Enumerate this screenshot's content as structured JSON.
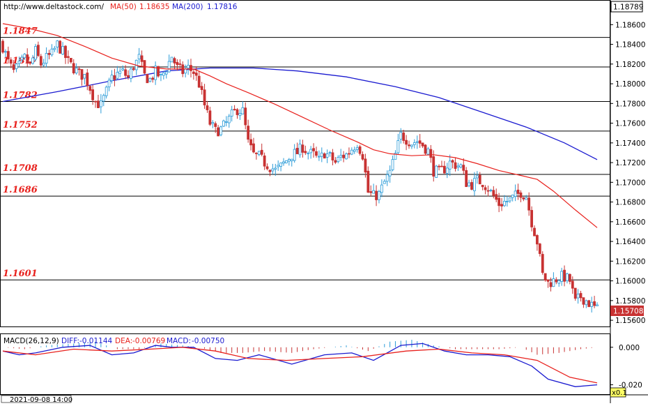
{
  "header": {
    "site": "http://www.deltastock.com/",
    "ma50_label": "MA(50)",
    "ma50_value": "1.18635",
    "ma200_label": "MA(200)",
    "ma200_value": "1.17816"
  },
  "macd_header": {
    "title": "MACD(26,12,9)",
    "diff_label": "DIFF:",
    "diff_value": "-0.01144",
    "dea_label": "DEA:",
    "dea_value": "-0.00769",
    "macd_label": "MACD:",
    "macd_value": "-0.00750"
  },
  "footer": {
    "timestamp": "2021-09-08 14:00",
    "zoom_badge": "x0.1"
  },
  "colors": {
    "ma50": "#e8201c",
    "ma200": "#1a1ad0",
    "bull": "#2a9bd8",
    "bear": "#c83232",
    "level_label": "#e8201c",
    "current_price_bg": "#c83232"
  },
  "chart_data": [
    {
      "type": "candlestick",
      "title": "",
      "ylim": [
        1.1553,
        1.1885
      ],
      "y_ticks": [
        "1.18600",
        "1.18400",
        "1.18200",
        "1.18000",
        "1.17800",
        "1.17600",
        "1.17400",
        "1.17200",
        "1.17000",
        "1.16800",
        "1.16600",
        "1.16400",
        "1.16200",
        "1.16000",
        "1.15800",
        "1.15600"
      ],
      "top_price_label": "1.18789",
      "current_price": 1.15708,
      "current_price_label": "1.15708",
      "levels": [
        {
          "value": 1.1847,
          "label": "1.1847"
        },
        {
          "value": 1.1817,
          "label": "1.1817"
        },
        {
          "value": 1.1782,
          "label": "1.1782"
        },
        {
          "value": 1.1752,
          "label": "1.1752"
        },
        {
          "value": 1.1708,
          "label": "1.1708"
        },
        {
          "value": 1.1686,
          "label": "1.1686"
        },
        {
          "value": 1.1601,
          "label": "1.1601"
        }
      ],
      "close_path": [
        [
          0,
          1.1838
        ],
        [
          2,
          1.1822
        ],
        [
          4,
          1.1812
        ],
        [
          6,
          1.1818
        ],
        [
          8,
          1.1826
        ],
        [
          10,
          1.1818
        ],
        [
          12,
          1.1833
        ],
        [
          14,
          1.182
        ],
        [
          16,
          1.1826
        ],
        [
          18,
          1.183
        ],
        [
          20,
          1.184
        ],
        [
          22,
          1.1832
        ],
        [
          24,
          1.1822
        ],
        [
          26,
          1.1816
        ],
        [
          28,
          1.181
        ],
        [
          30,
          1.1808
        ],
        [
          32,
          1.1796
        ],
        [
          34,
          1.1782
        ],
        [
          36,
          1.1778
        ],
        [
          38,
          1.1792
        ],
        [
          40,
          1.1806
        ],
        [
          42,
          1.181
        ],
        [
          44,
          1.1812
        ],
        [
          46,
          1.1806
        ],
        [
          48,
          1.1818
        ],
        [
          50,
          1.1826
        ],
        [
          52,
          1.1808
        ],
        [
          54,
          1.1804
        ],
        [
          56,
          1.1812
        ],
        [
          58,
          1.1806
        ],
        [
          60,
          1.1816
        ],
        [
          62,
          1.1828
        ],
        [
          64,
          1.1816
        ],
        [
          66,
          1.1812
        ],
        [
          68,
          1.1816
        ],
        [
          70,
          1.1812
        ],
        [
          72,
          1.18
        ],
        [
          74,
          1.1778
        ],
        [
          76,
          1.176
        ],
        [
          78,
          1.1752
        ],
        [
          80,
          1.1754
        ],
        [
          82,
          1.176
        ],
        [
          84,
          1.1768
        ],
        [
          86,
          1.1774
        ],
        [
          88,
          1.1772
        ],
        [
          90,
          1.174
        ],
        [
          92,
          1.1728
        ],
        [
          94,
          1.1726
        ],
        [
          96,
          1.172
        ],
        [
          98,
          1.1716
        ],
        [
          100,
          1.1712
        ],
        [
          102,
          1.1716
        ],
        [
          104,
          1.1722
        ],
        [
          106,
          1.1728
        ],
        [
          108,
          1.173
        ],
        [
          110,
          1.1736
        ],
        [
          112,
          1.173
        ],
        [
          114,
          1.1728
        ],
        [
          116,
          1.1722
        ],
        [
          118,
          1.173
        ],
        [
          120,
          1.1726
        ],
        [
          122,
          1.172
        ],
        [
          124,
          1.1726
        ],
        [
          126,
          1.1728
        ],
        [
          128,
          1.1734
        ],
        [
          130,
          1.174
        ],
        [
          132,
          1.1728
        ],
        [
          134,
          1.169
        ],
        [
          136,
          1.1686
        ],
        [
          138,
          1.1688
        ],
        [
          140,
          1.17
        ],
        [
          142,
          1.171
        ],
        [
          144,
          1.1728
        ],
        [
          146,
          1.1748
        ],
        [
          148,
          1.1744
        ],
        [
          150,
          1.174
        ],
        [
          152,
          1.1742
        ],
        [
          154,
          1.1738
        ],
        [
          156,
          1.1732
        ],
        [
          158,
          1.1712
        ],
        [
          160,
          1.171
        ],
        [
          162,
          1.1714
        ],
        [
          164,
          1.172
        ],
        [
          166,
          1.1718
        ],
        [
          168,
          1.1716
        ],
        [
          170,
          1.17
        ],
        [
          172,
          1.1698
        ],
        [
          174,
          1.1702
        ],
        [
          176,
          1.17
        ],
        [
          178,
          1.1694
        ],
        [
          180,
          1.1686
        ],
        [
          182,
          1.1678
        ],
        [
          184,
          1.168
        ],
        [
          186,
          1.1682
        ],
        [
          188,
          1.1686
        ],
        [
          190,
          1.169
        ],
        [
          192,
          1.1686
        ],
        [
          194,
          1.166
        ],
        [
          196,
          1.164
        ],
        [
          198,
          1.1606
        ],
        [
          200,
          1.1598
        ],
        [
          202,
          1.16
        ],
        [
          204,
          1.1604
        ],
        [
          206,
          1.1604
        ],
        [
          208,
          1.16
        ],
        [
          210,
          1.1578
        ],
        [
          212,
          1.1584
        ],
        [
          214,
          1.158
        ],
        [
          216,
          1.1575
        ],
        [
          218,
          1.15708
        ]
      ],
      "ma50_path": [
        [
          0,
          1.1861
        ],
        [
          10,
          1.1856
        ],
        [
          20,
          1.1849
        ],
        [
          30,
          1.1838
        ],
        [
          40,
          1.1826
        ],
        [
          50,
          1.1818
        ],
        [
          60,
          1.1815
        ],
        [
          70,
          1.1815
        ],
        [
          76,
          1.1808
        ],
        [
          82,
          1.18
        ],
        [
          90,
          1.1791
        ],
        [
          100,
          1.1779
        ],
        [
          110,
          1.1766
        ],
        [
          120,
          1.1753
        ],
        [
          130,
          1.1741
        ],
        [
          136,
          1.1733
        ],
        [
          142,
          1.1729
        ],
        [
          150,
          1.1727
        ],
        [
          158,
          1.1728
        ],
        [
          166,
          1.1725
        ],
        [
          174,
          1.1719
        ],
        [
          182,
          1.1712
        ],
        [
          190,
          1.1707
        ],
        [
          196,
          1.1703
        ],
        [
          202,
          1.1691
        ],
        [
          210,
          1.1672
        ],
        [
          218,
          1.1654
        ]
      ],
      "ma200_path": [
        [
          0,
          1.1782
        ],
        [
          20,
          1.1792
        ],
        [
          40,
          1.1803
        ],
        [
          60,
          1.1813
        ],
        [
          76,
          1.1816
        ],
        [
          92,
          1.1816
        ],
        [
          108,
          1.1813
        ],
        [
          126,
          1.1807
        ],
        [
          144,
          1.1797
        ],
        [
          160,
          1.1786
        ],
        [
          176,
          1.1771
        ],
        [
          192,
          1.1756
        ],
        [
          206,
          1.174
        ],
        [
          218,
          1.1723
        ]
      ]
    },
    {
      "type": "macd",
      "title": "",
      "ylim": [
        -0.025,
        0.007
      ],
      "y_ticks": [
        "0.000",
        "-0.020"
      ],
      "diff_path": [
        [
          0,
          -0.002
        ],
        [
          6,
          -0.004
        ],
        [
          12,
          -0.003
        ],
        [
          22,
          0.0
        ],
        [
          32,
          0.001
        ],
        [
          40,
          -0.004
        ],
        [
          48,
          -0.003
        ],
        [
          56,
          0.001
        ],
        [
          62,
          0.0
        ],
        [
          70,
          0.0
        ],
        [
          78,
          -0.006
        ],
        [
          86,
          -0.007
        ],
        [
          94,
          -0.004
        ],
        [
          106,
          -0.009
        ],
        [
          118,
          -0.004
        ],
        [
          128,
          -0.003
        ],
        [
          136,
          -0.007
        ],
        [
          146,
          0.001
        ],
        [
          154,
          0.002
        ],
        [
          162,
          -0.002
        ],
        [
          170,
          -0.004
        ],
        [
          178,
          -0.004
        ],
        [
          186,
          -0.005
        ],
        [
          194,
          -0.01
        ],
        [
          200,
          -0.017
        ],
        [
          210,
          -0.021
        ],
        [
          218,
          -0.02
        ]
      ],
      "dea_path": [
        [
          0,
          -0.002
        ],
        [
          12,
          -0.004
        ],
        [
          26,
          -0.001
        ],
        [
          40,
          -0.002
        ],
        [
          54,
          -0.001
        ],
        [
          66,
          0.0
        ],
        [
          78,
          -0.002
        ],
        [
          90,
          -0.006
        ],
        [
          104,
          -0.007
        ],
        [
          118,
          -0.006
        ],
        [
          132,
          -0.005
        ],
        [
          148,
          -0.002
        ],
        [
          160,
          -0.001
        ],
        [
          172,
          -0.003
        ],
        [
          184,
          -0.004
        ],
        [
          196,
          -0.007
        ],
        [
          208,
          -0.016
        ],
        [
          218,
          -0.019
        ]
      ],
      "hist_path": [
        [
          0,
          0.0
        ],
        [
          8,
          -0.001
        ],
        [
          16,
          0.001
        ],
        [
          26,
          0.002
        ],
        [
          34,
          0.003
        ],
        [
          42,
          -0.001
        ],
        [
          50,
          -0.001
        ],
        [
          58,
          0.002
        ],
        [
          66,
          0.001
        ],
        [
          72,
          0.0
        ],
        [
          80,
          -0.003
        ],
        [
          88,
          -0.003
        ],
        [
          96,
          -0.002
        ],
        [
          106,
          -0.003
        ],
        [
          114,
          -0.001
        ],
        [
          126,
          0.001
        ],
        [
          134,
          -0.002
        ],
        [
          142,
          0.003
        ],
        [
          150,
          0.004
        ],
        [
          158,
          0.001
        ],
        [
          166,
          -0.001
        ],
        [
          174,
          -0.001
        ],
        [
          182,
          -0.001
        ],
        [
          190,
          0.0
        ],
        [
          196,
          -0.004
        ],
        [
          204,
          -0.003
        ],
        [
          212,
          -0.001
        ],
        [
          218,
          0.0
        ]
      ]
    }
  ]
}
